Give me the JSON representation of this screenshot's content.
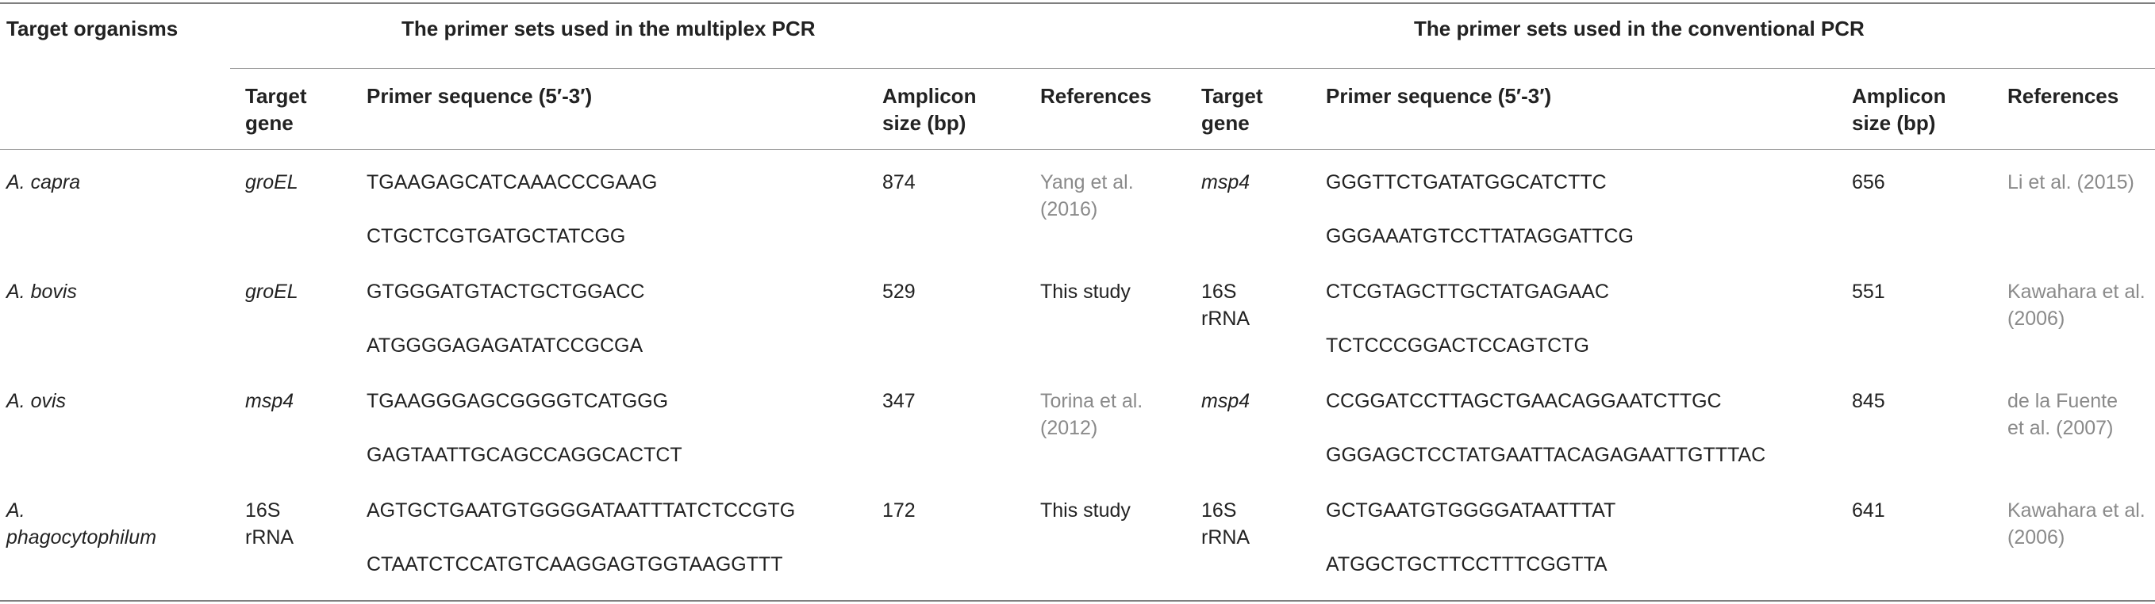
{
  "headers": {
    "target_organisms": "Target organisms",
    "multiplex_group": "The primer sets used in the multiplex PCR",
    "conventional_group": "The primer sets used in the conventional PCR",
    "target_gene": [
      "Target",
      "gene"
    ],
    "primer_sequence": "Primer sequence (5′-3′)",
    "amplicon_size": [
      "Amplicon",
      "size (bp)"
    ],
    "references": "References"
  },
  "rows": [
    {
      "organism": [
        "A. capra"
      ],
      "m_gene": [
        "groEL"
      ],
      "m_gene_italic": true,
      "m_seq": [
        "TGAAGAGCATCAAACCCGAAG",
        "CTGCTCGTGATGCTATCGG"
      ],
      "m_size": "874",
      "m_ref": [
        "Yang et al.",
        "(2016)"
      ],
      "m_ref_link": true,
      "c_gene": [
        "msp4"
      ],
      "c_gene_italic": true,
      "c_seq": [
        "GGGTTCTGATATGGCATCTTC",
        "GGGAAATGTCCTTATAGGATTCG"
      ],
      "c_size": "656",
      "c_ref": [
        "Li et al. (2015)"
      ],
      "c_ref_link": true
    },
    {
      "organism": [
        "A. bovis"
      ],
      "m_gene": [
        "groEL"
      ],
      "m_gene_italic": true,
      "m_seq": [
        "GTGGGATGTACTGCTGGACC",
        "ATGGGGAGAGATATCCGCGA"
      ],
      "m_size": "529",
      "m_ref": [
        "This study"
      ],
      "m_ref_link": false,
      "c_gene": [
        "16S",
        "rRNA"
      ],
      "c_gene_italic": false,
      "c_seq": [
        "CTCGTAGCTTGCTATGAGAAC",
        "TCTCCCGGACTCCAGTCTG"
      ],
      "c_size": "551",
      "c_ref": [
        "Kawahara et al.",
        "(2006)"
      ],
      "c_ref_link": true
    },
    {
      "organism": [
        "A. ovis"
      ],
      "m_gene": [
        "msp4"
      ],
      "m_gene_italic": true,
      "m_seq": [
        "TGAAGGGAGCGGGGTCATGGG",
        "GAGTAATTGCAGCCAGGCACTCT"
      ],
      "m_size": "347",
      "m_ref": [
        "Torina et al.",
        "(2012)"
      ],
      "m_ref_link": true,
      "c_gene": [
        "msp4"
      ],
      "c_gene_italic": true,
      "c_seq": [
        "CCGGATCCTTAGCTGAACAGGAATCTTGC",
        "GGGAGCTCCTATGAATTACAGAGAATTGTTTAC"
      ],
      "c_size": "845",
      "c_ref": [
        "de la Fuente",
        "et al. (2007)"
      ],
      "c_ref_link": true
    },
    {
      "organism": [
        "A.",
        "phagocytophilum"
      ],
      "m_gene": [
        "16S",
        "rRNA"
      ],
      "m_gene_italic": false,
      "m_seq": [
        "AGTGCTGAATGTGGGGATAATTTATCTCCGTG",
        "CTAATCTCCATGTCAAGGAGTGGTAAGGTTT"
      ],
      "m_size": "172",
      "m_ref": [
        "This study"
      ],
      "m_ref_link": false,
      "c_gene": [
        "16S",
        "rRNA"
      ],
      "c_gene_italic": false,
      "c_seq": [
        "GCTGAATGTGGGGATAATTTAT",
        "ATGGCTGCTTCCTTTCGGTTA"
      ],
      "c_size": "641",
      "c_ref": [
        "Kawahara et al.",
        "(2006)"
      ],
      "c_ref_link": true
    }
  ]
}
